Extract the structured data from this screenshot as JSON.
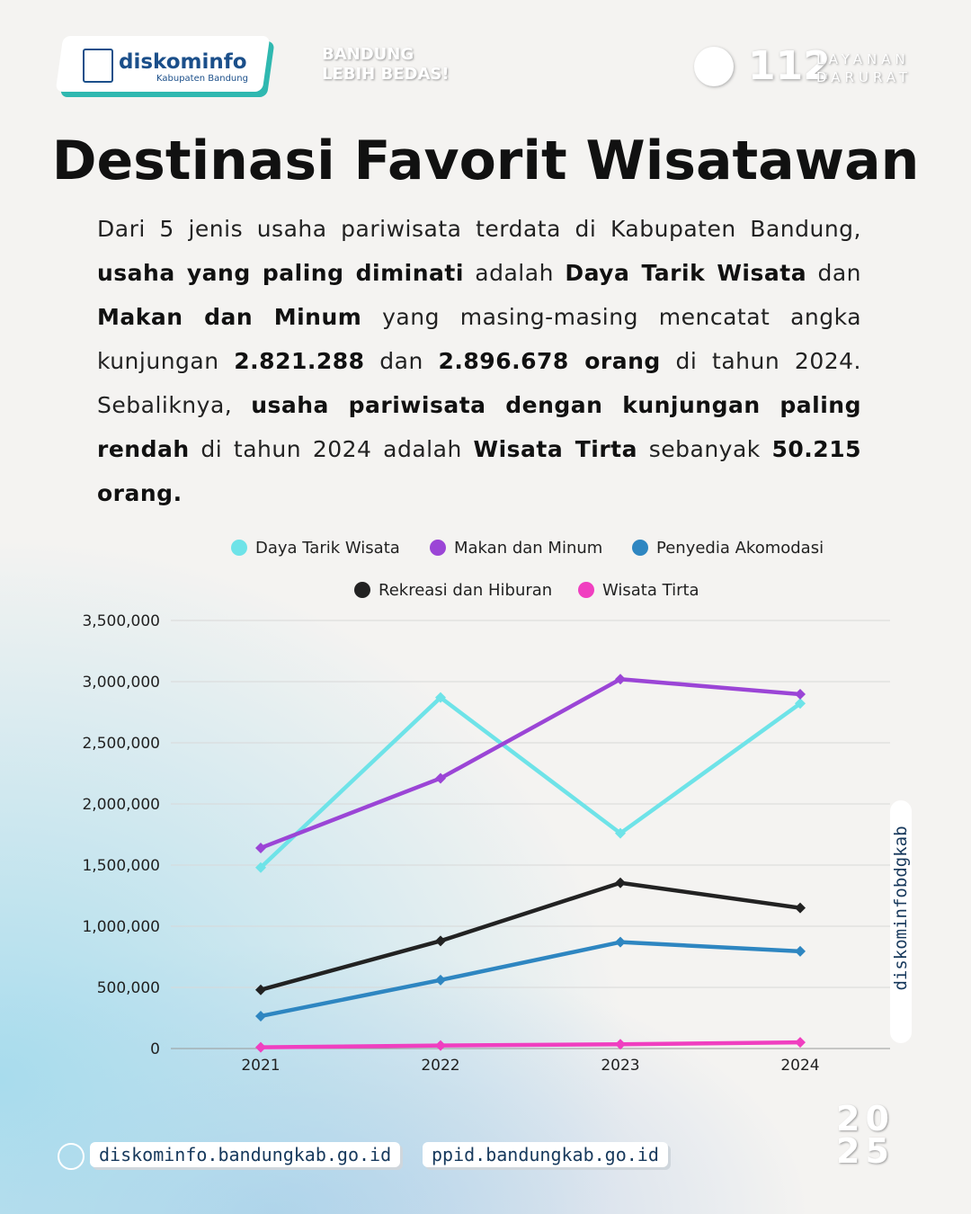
{
  "header": {
    "brand": "diskominfo",
    "brand_sub": "Kabupaten Bandung",
    "slogan_1": "BANDUNG",
    "slogan_2": "LEBIH BEDAS!",
    "hotline": "112",
    "hotline_1": "LAYANAN",
    "hotline_2": "DARURAT"
  },
  "title": "Destinasi Favorit Wisatawan",
  "paragraph": [
    {
      "text": "Dari 5 jenis usaha pariwisata terdata di Kabupaten Bandung, ",
      "bold": false
    },
    {
      "text": "usaha yang paling diminati",
      "bold": true
    },
    {
      "text": " adalah ",
      "bold": false
    },
    {
      "text": "Daya Tarik Wisata",
      "bold": true
    },
    {
      "text": " dan ",
      "bold": false
    },
    {
      "text": "Makan dan Minum",
      "bold": true
    },
    {
      "text": " yang masing-masing mencatat angka kunjungan ",
      "bold": false
    },
    {
      "text": "2.821.288",
      "bold": true
    },
    {
      "text": " dan ",
      "bold": false
    },
    {
      "text": "2.896.678 orang",
      "bold": true
    },
    {
      "text": " di tahun 2024. Sebaliknya, ",
      "bold": false
    },
    {
      "text": "usaha pariwisata dengan kunjungan paling rendah",
      "bold": true
    },
    {
      "text": " di tahun 2024 adalah ",
      "bold": false
    },
    {
      "text": "Wisata Tirta",
      "bold": true
    },
    {
      "text": " sebanyak ",
      "bold": false
    },
    {
      "text": "50.215 orang.",
      "bold": true
    }
  ],
  "chart_data": {
    "type": "line",
    "categories": [
      "2021",
      "2022",
      "2023",
      "2024"
    ],
    "series": [
      {
        "name": "Daya Tarik Wisata",
        "color": "#6ee3e8",
        "values": [
          1480000,
          2870000,
          1760000,
          2821288
        ]
      },
      {
        "name": "Makan dan Minum",
        "color": "#9b45d6",
        "values": [
          1640000,
          2210000,
          3020000,
          2896678
        ]
      },
      {
        "name": "Penyedia Akomodasi",
        "color": "#2e86c1",
        "values": [
          265000,
          560000,
          870000,
          795000
        ]
      },
      {
        "name": "Rekreasi dan Hiburan",
        "color": "#222222",
        "values": [
          480000,
          880000,
          1355000,
          1150000
        ]
      },
      {
        "name": "Wisata Tirta",
        "color": "#f03fc0",
        "values": [
          10000,
          25000,
          35000,
          50215
        ]
      }
    ],
    "ylim": [
      0,
      3500000
    ],
    "yticks": [
      0,
      {
        "value": 500000,
        "label": "500,000"
      },
      {
        "value": 1000000,
        "label": "1,000,000"
      },
      {
        "value": 1500000,
        "label": "1,500,000"
      },
      {
        "value": 2000000,
        "label": "2,000,000"
      },
      {
        "value": 2500000,
        "label": "2,500,000"
      },
      {
        "value": 3000000,
        "label": "3,000,000"
      },
      {
        "value": 3500000,
        "label": "3,500,000"
      }
    ],
    "grid": true
  },
  "side_handle": "diskominfobdgkab",
  "footer": {
    "site_1": "diskominfo.bandungkab.go.id",
    "site_2": "ppid.bandungkab.go.id",
    "year_top": "20",
    "year_bottom": "25"
  }
}
